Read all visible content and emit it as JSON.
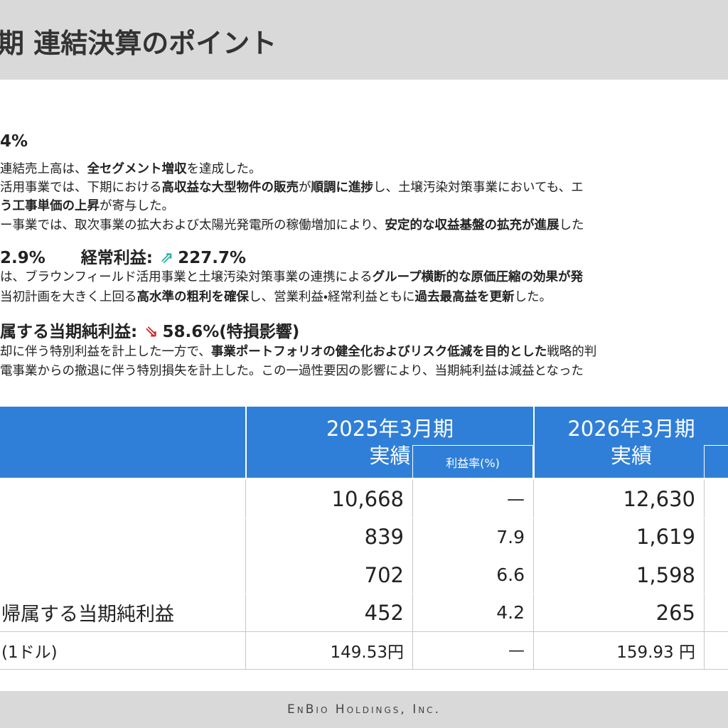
{
  "header": {
    "title": "期 連結決算のポイント"
  },
  "sections": [
    {
      "heading": [
        "4%"
      ],
      "lines": [
        [
          {
            "text": "連結売上高は、"
          },
          {
            "text": "全セグメント増収",
            "bold": true
          },
          {
            "text": "を達成した。"
          }
        ],
        [
          {
            "text": "活用事業では、下期における"
          },
          {
            "text": "高収益な大型物件の販売",
            "bold": true
          },
          {
            "text": "が"
          },
          {
            "text": "順調に進捗",
            "bold": true
          },
          {
            "text": "し、土壌汚染対策事業においても、エ"
          }
        ],
        [
          {
            "text": "う工事単価の上昇",
            "bold": true
          },
          {
            "text": "が寄与した。"
          }
        ],
        [
          {
            "text": "ー事業では、取次事業の拡大および太陽光発電所の稼働増加により、"
          },
          {
            "text": "安定的な収益基盤の拡充が進展",
            "bold": true
          },
          {
            "text": "した"
          }
        ]
      ]
    },
    {
      "heading": [
        "2.9%",
        "経常利益:",
        "227.7%"
      ],
      "lines": [
        [
          {
            "text": "は、ブラウンフィールド活用事業と土壌汚染対策事業の連携による"
          },
          {
            "text": "グループ横断的な原価圧縮の効果が発",
            "bold": true
          }
        ],
        [
          {
            "text": "当初計画を大きく上回る"
          },
          {
            "text": "高水準の粗利を確保",
            "bold": true
          },
          {
            "text": "し、営業利益・経常利益ともに"
          },
          {
            "text": "過去最高益を更新",
            "bold": true
          },
          {
            "text": "した。"
          }
        ]
      ]
    },
    {
      "heading": [
        "属する当期純利益:",
        "58.6%(特損影響)"
      ],
      "lines": [
        [
          {
            "text": "却に伴う特別利益を計上した一方で、"
          },
          {
            "text": "事業ポートフォリオの健全化およびリスク低減を目的とした",
            "bold": true
          },
          {
            "text": "戦略的判"
          }
        ],
        [
          {
            "text": "電事業からの撤退に伴う特別損失を計上した。この一過性要因の影響により、当期純利益は減益となった"
          }
        ]
      ]
    }
  ],
  "table": {
    "columns": [
      {
        "period": "2025年3月期",
        "label": "実績"
      },
      {
        "label": "利益率(%)"
      },
      {
        "period": "2026年3月期",
        "label": "実績"
      }
    ],
    "rows": [
      {
        "label": null,
        "cells": [
          "10,668",
          "—",
          "12,630"
        ]
      },
      {
        "label": null,
        "cells": [
          "839",
          "7.9",
          "1,619"
        ]
      },
      {
        "label": null,
        "cells": [
          "702",
          "6.6",
          "1,598"
        ]
      },
      {
        "label": "帰属する当期純利益",
        "cells": [
          "452",
          "4.2",
          "265"
        ]
      },
      {
        "label": "(1ドル)",
        "cells": [
          "149.53円",
          "—",
          "159.93 円"
        ]
      }
    ]
  },
  "footer": {
    "company": "EnBio Holdings, Inc."
  }
}
